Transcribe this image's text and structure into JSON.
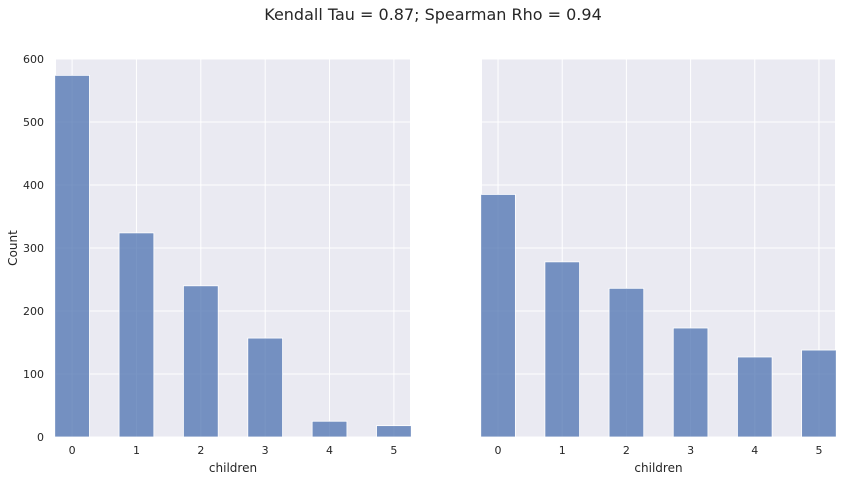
{
  "figure": {
    "title": "Kendall Tau = 0.87; Spearman Rho = 0.94"
  },
  "chart_data": [
    {
      "type": "bar",
      "xlabel": "children",
      "ylabel": "Count",
      "xlim": [
        -0.25,
        5.25
      ],
      "ylim": [
        0,
        600
      ],
      "xticks": [
        0,
        1,
        2,
        3,
        4,
        5
      ],
      "yticks": [
        0,
        100,
        200,
        300,
        400,
        500,
        600
      ],
      "grid": true,
      "categories": [
        0,
        1,
        2,
        3,
        4,
        5
      ],
      "values": [
        574,
        324,
        240,
        157,
        25,
        18
      ],
      "bar_color": "#4c72b0"
    },
    {
      "type": "bar",
      "xlabel": "children",
      "ylabel": "",
      "xlim": [
        -0.25,
        5.25
      ],
      "ylim": [
        0,
        600
      ],
      "xticks": [
        0,
        1,
        2,
        3,
        4,
        5
      ],
      "yticks": [
        0,
        100,
        200,
        300,
        400,
        500,
        600
      ],
      "grid": true,
      "categories": [
        0,
        1,
        2,
        3,
        4,
        5
      ],
      "values": [
        385,
        278,
        236,
        173,
        127,
        138
      ],
      "bar_color": "#4c72b0"
    }
  ]
}
